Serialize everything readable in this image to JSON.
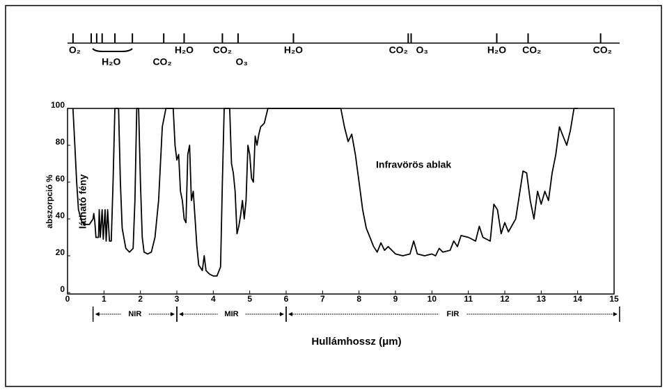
{
  "chart_data": {
    "type": "line",
    "x_label": "Hullámhossz (μm)",
    "y_label": "abszorpció %",
    "annotations": [
      "látható fény",
      "Infravörös ablak"
    ],
    "xlim": [
      0,
      15
    ],
    "ylim": [
      0,
      100
    ],
    "xticks": [
      0,
      1,
      2,
      3,
      4,
      5,
      6,
      7,
      8,
      9,
      10,
      11,
      12,
      13,
      14,
      15
    ],
    "yticks": [
      0,
      20,
      40,
      60,
      80,
      100
    ],
    "color": "#000000",
    "absorber_ticks": [
      0.15,
      0.65,
      0.8,
      0.95,
      1.3,
      1.78,
      2.64,
      3.2,
      4.25,
      4.68,
      6.2,
      9.35,
      9.43,
      11.78,
      12.64,
      14.63
    ],
    "absorber_labels": [
      {
        "text": "O₂",
        "x": 0.2
      },
      {
        "text": "H₂O",
        "x": 1.2
      },
      {
        "text": "CO₂",
        "x": 2.6
      },
      {
        "text": "H₂O",
        "x": 3.2
      },
      {
        "text": "CO₂",
        "x": 4.25
      },
      {
        "text": "O₃",
        "x": 4.78
      },
      {
        "text": "H₂O",
        "x": 6.2
      },
      {
        "text": "CO₂",
        "x": 9.08
      },
      {
        "text": "O₃",
        "x": 9.73
      },
      {
        "text": "H₂O",
        "x": 11.78
      },
      {
        "text": "CO₂",
        "x": 12.74
      },
      {
        "text": "CO₂",
        "x": 14.68
      }
    ],
    "bands": [
      {
        "name": "NIR",
        "range": [
          0.7,
          3
        ]
      },
      {
        "name": "MIR",
        "range": [
          3,
          6
        ]
      },
      {
        "name": "FIR",
        "range": [
          6,
          15.15
        ]
      }
    ],
    "x": [
      0.15,
      0.2,
      0.25,
      0.3,
      0.4,
      0.5,
      0.6,
      0.7,
      0.72,
      0.75,
      0.78,
      0.85,
      0.87,
      0.9,
      0.95,
      0.98,
      1.03,
      1.06,
      1.1,
      1.15,
      1.2,
      1.25,
      1.3,
      1.4,
      1.45,
      1.5,
      1.6,
      1.7,
      1.8,
      1.85,
      1.9,
      1.95,
      2.0,
      2.05,
      2.1,
      2.2,
      2.3,
      2.4,
      2.5,
      2.6,
      2.7,
      2.9,
      2.95,
      3.0,
      3.05,
      3.1,
      3.15,
      3.2,
      3.25,
      3.3,
      3.35,
      3.4,
      3.45,
      3.5,
      3.55,
      3.6,
      3.7,
      3.75,
      3.8,
      3.9,
      4.0,
      4.1,
      4.2,
      4.25,
      4.3,
      4.45,
      4.5,
      4.55,
      4.6,
      4.65,
      4.7,
      4.75,
      4.8,
      4.85,
      4.9,
      4.95,
      5.0,
      5.05,
      5.1,
      5.15,
      5.2,
      5.25,
      5.3,
      5.4,
      5.5,
      7.5,
      7.6,
      7.7,
      7.8,
      7.9,
      8.0,
      8.1,
      8.2,
      8.3,
      8.4,
      8.5,
      8.6,
      8.7,
      8.8,
      9.0,
      9.2,
      9.4,
      9.5,
      9.6,
      9.8,
      10.0,
      10.1,
      10.2,
      10.3,
      10.5,
      10.6,
      10.7,
      10.8,
      11.0,
      11.2,
      11.3,
      11.4,
      11.6,
      11.7,
      11.8,
      11.9,
      12.0,
      12.1,
      12.3,
      12.5,
      12.6,
      12.7,
      12.8,
      12.9,
      13.0,
      13.1,
      13.2,
      13.3,
      13.4,
      13.5,
      13.6,
      13.7,
      13.8,
      13.9,
      14.0
    ],
    "values": [
      100,
      80,
      60,
      45,
      38,
      37,
      37,
      40,
      43,
      38,
      30,
      30,
      45,
      30,
      45,
      29,
      45,
      28,
      45,
      28,
      28,
      60,
      100,
      100,
      60,
      35,
      24,
      22,
      24,
      50,
      100,
      100,
      60,
      30,
      22,
      21,
      22,
      30,
      50,
      90,
      100,
      100,
      80,
      72,
      75,
      55,
      50,
      40,
      38,
      75,
      80,
      50,
      55,
      40,
      25,
      15,
      12,
      20,
      12,
      10,
      9,
      9,
      14,
      60,
      100,
      100,
      70,
      65,
      55,
      32,
      36,
      42,
      50,
      40,
      50,
      80,
      75,
      62,
      60,
      85,
      80,
      86,
      90,
      92,
      100,
      100,
      90,
      82,
      86,
      75,
      60,
      45,
      35,
      30,
      25,
      22,
      27,
      23,
      25,
      21,
      20,
      21,
      28,
      21,
      20,
      21,
      20,
      24,
      22,
      23,
      28,
      25,
      31,
      30,
      28,
      36,
      30,
      28,
      48,
      45,
      32,
      38,
      33,
      40,
      66,
      65,
      50,
      40,
      55,
      48,
      55,
      50,
      65,
      75,
      90,
      85,
      80,
      88,
      100,
      100
    ]
  }
}
